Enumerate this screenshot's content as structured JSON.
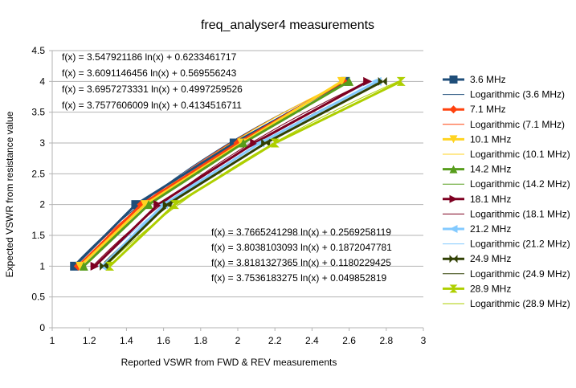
{
  "chart_data": {
    "type": "line",
    "title": "freq_analyser4 measurements",
    "xlabel": "Reported VSWR from FWD & REV measurements",
    "ylabel": "Expected VSWR from resistance value",
    "xlim": [
      1,
      3
    ],
    "ylim": [
      0,
      4.5
    ],
    "x_ticks": [
      "1",
      "1.2",
      "1.4",
      "1.6",
      "1.8",
      "2",
      "2.2",
      "2.4",
      "2.6",
      "2.8",
      "3"
    ],
    "y_ticks": [
      "0",
      "0.5",
      "1",
      "1.5",
      "2",
      "2.5",
      "3",
      "3.5",
      "4",
      "4.5"
    ],
    "grid": "horizontal",
    "legend_position": "right",
    "series": [
      {
        "name": "3.6 MHz",
        "color": "#1f4e79",
        "marker": "square",
        "x": [
          1.12,
          1.45,
          1.98,
          2.58
        ],
        "y": [
          1,
          2,
          3,
          4
        ],
        "trend_name": "Logarithmic (3.6 MHz)",
        "a": 3.547921186,
        "b": 0.6233461717
      },
      {
        "name": "7.1 MHz",
        "color": "#ff420e",
        "marker": "diamond",
        "x": [
          1.14,
          1.48,
          2.0,
          2.57
        ],
        "y": [
          1,
          2,
          3,
          4
        ],
        "trend_name": "Logarithmic (7.1 MHz)",
        "a": 3.6091146456,
        "b": 0.569556243
      },
      {
        "name": "10.1 MHz",
        "color": "#ffd320",
        "marker": "tri-down",
        "x": [
          1.15,
          1.5,
          2.02,
          2.56
        ],
        "y": [
          1,
          2,
          3,
          4
        ],
        "trend_name": "Logarithmic (10.1 MHz)",
        "a": 3.6957273331,
        "b": 0.4997259526
      },
      {
        "name": "14.2 MHz",
        "color": "#579d1c",
        "marker": "tri-up",
        "x": [
          1.17,
          1.52,
          2.03,
          2.6
        ],
        "y": [
          1,
          2,
          3,
          4
        ],
        "trend_name": "Logarithmic (14.2 MHz)",
        "a": 3.7577606009,
        "b": 0.4134516711
      },
      {
        "name": "18.1 MHz",
        "color": "#7e0021",
        "marker": "tri-right",
        "x": [
          1.23,
          1.57,
          2.09,
          2.7
        ],
        "y": [
          1,
          2,
          3,
          4
        ],
        "trend_name": "Logarithmic (18.1 MHz)",
        "a": 3.7665241298,
        "b": 0.2569258119
      },
      {
        "name": "21.2 MHz",
        "color": "#83caff",
        "marker": "tri-left",
        "x": [
          1.27,
          1.6,
          2.12,
          2.75
        ],
        "y": [
          1,
          2,
          3,
          4
        ],
        "trend_name": "Logarithmic (21.2 MHz)",
        "a": 3.8038103093,
        "b": 0.1872047781
      },
      {
        "name": "24.9 MHz",
        "color": "#314004",
        "marker": "bowtie",
        "x": [
          1.28,
          1.62,
          2.15,
          2.78
        ],
        "y": [
          1,
          2,
          3,
          4
        ],
        "trend_name": "Logarithmic (24.9 MHz)",
        "a": 3.8181327365,
        "b": 0.1180229425
      },
      {
        "name": "28.9 MHz",
        "color": "#aecf00",
        "marker": "hourglass",
        "x": [
          1.31,
          1.66,
          2.2,
          2.88
        ],
        "y": [
          1,
          2,
          3,
          4
        ],
        "trend_name": "Logarithmic (28.9 MHz)",
        "a": 3.7536183275,
        "b": 0.049852819
      }
    ],
    "equations_top": [
      "f(x) = 3.547921186 ln(x) + 0.6233461717",
      "f(x) = 3.6091146456 ln(x) + 0.569556243",
      "f(x) = 3.6957273331 ln(x) + 0.4997259526",
      "f(x) = 3.7577606009 ln(x) + 0.4134516711"
    ],
    "equations_bottom": [
      "f(x) = 3.7665241298 ln(x) + 0.2569258119",
      "f(x) = 3.8038103093 ln(x) + 0.1872047781",
      "f(x) = 3.8181327365 ln(x) + 0.1180229425",
      "f(x) = 3.7536183275 ln(x) + 0.049852819"
    ]
  }
}
